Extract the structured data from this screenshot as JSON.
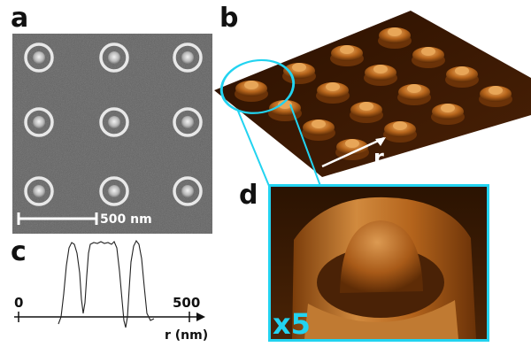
{
  "panels": {
    "a": "a",
    "b": "b",
    "c": "c",
    "d": "d"
  },
  "sem": {
    "scale_bar_label": "500 nm"
  },
  "afm": {
    "axis_label": "r"
  },
  "zoom": {
    "magnification_label": "x5"
  },
  "profile": {
    "tick_start": "0",
    "tick_end": "500",
    "axis_label": "r (nm)"
  },
  "colors": {
    "highlight": "#22d3f0",
    "afm_base": "#3a1a02",
    "afm_feature": "#c97a2a",
    "sem_background": "#5d5d5d"
  },
  "chart_data": {
    "type": "line",
    "xlabel": "r (nm)",
    "xlim": [
      0,
      500
    ],
    "x_ticks": [
      0,
      500
    ]
  }
}
